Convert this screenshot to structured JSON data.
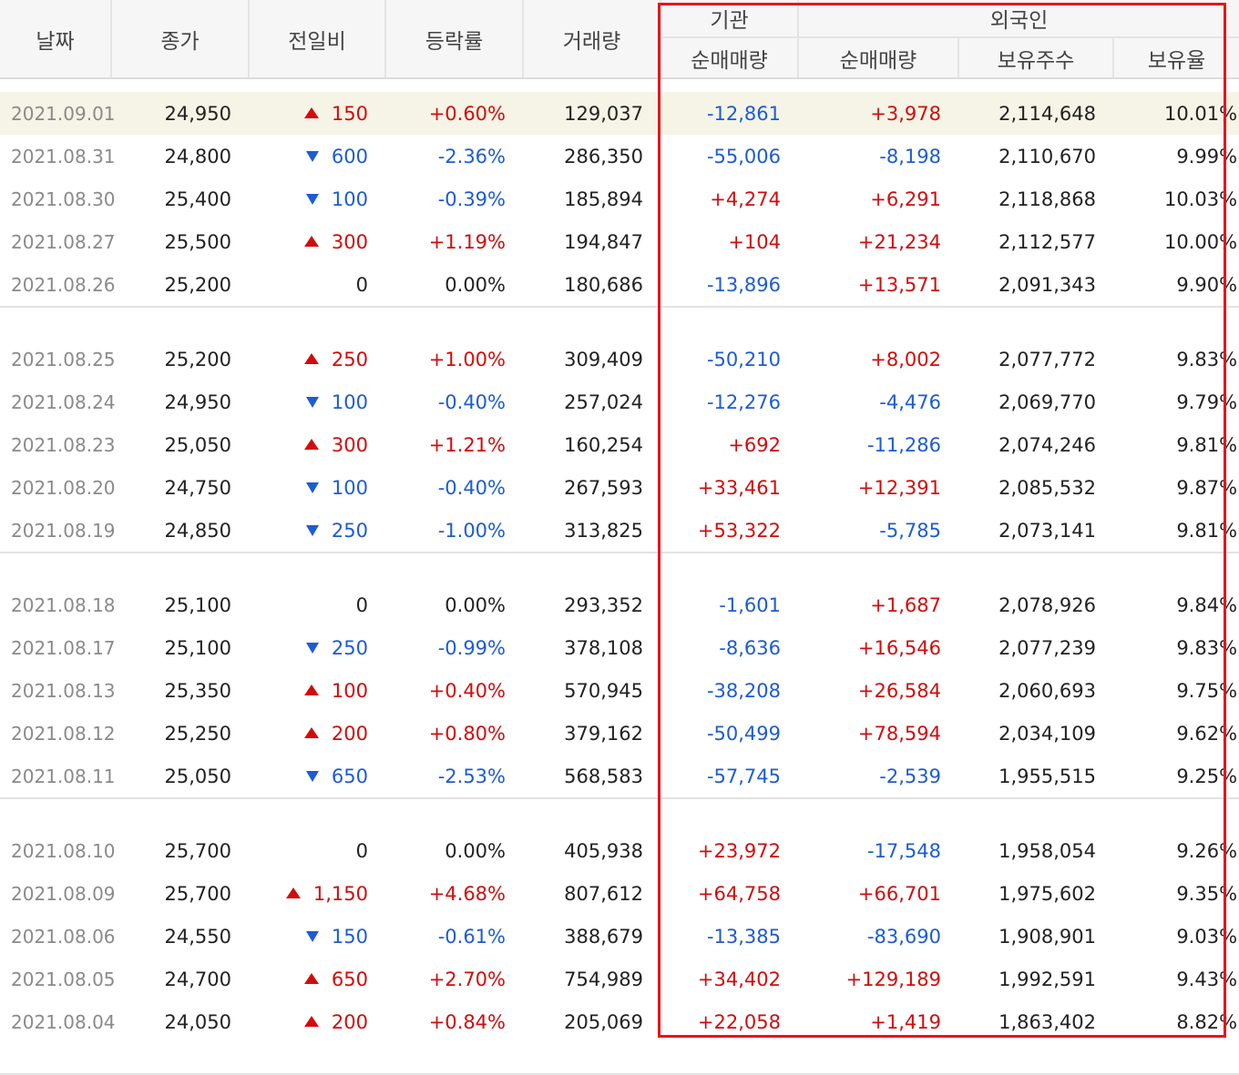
{
  "headers": {
    "date": "날짜",
    "close": "종가",
    "change": "전일비",
    "rate": "등락률",
    "volume": "거래량",
    "institution": "기관",
    "foreign": "외국인",
    "inst_net": "순매매량",
    "foreign_net": "순매매량",
    "foreign_holdings": "보유주수",
    "foreign_ratio": "보유율"
  },
  "colors": {
    "up": "#d20b0b",
    "down": "#1c5bd6",
    "highlight_box": "#e8141c",
    "selected_row": "#f5f4e6"
  },
  "icons": {
    "up": "triangle-up-icon",
    "down": "triangle-down-icon"
  },
  "groups": [
    [
      {
        "date": "2021.09.01",
        "close": "24,950",
        "dir": "up",
        "change": "150",
        "rate": "+0.60%",
        "volume": "129,037",
        "inst": "-12,861",
        "foreign": "+3,978",
        "holdings": "2,114,648",
        "ratio": "10.01%"
      },
      {
        "date": "2021.08.31",
        "close": "24,800",
        "dir": "down",
        "change": "600",
        "rate": "-2.36%",
        "volume": "286,350",
        "inst": "-55,006",
        "foreign": "-8,198",
        "holdings": "2,110,670",
        "ratio": "9.99%"
      },
      {
        "date": "2021.08.30",
        "close": "25,400",
        "dir": "down",
        "change": "100",
        "rate": "-0.39%",
        "volume": "185,894",
        "inst": "+4,274",
        "foreign": "+6,291",
        "holdings": "2,118,868",
        "ratio": "10.03%"
      },
      {
        "date": "2021.08.27",
        "close": "25,500",
        "dir": "up",
        "change": "300",
        "rate": "+1.19%",
        "volume": "194,847",
        "inst": "+104",
        "foreign": "+21,234",
        "holdings": "2,112,577",
        "ratio": "10.00%"
      },
      {
        "date": "2021.08.26",
        "close": "25,200",
        "dir": "flat",
        "change": "0",
        "rate": "0.00%",
        "volume": "180,686",
        "inst": "-13,896",
        "foreign": "+13,571",
        "holdings": "2,091,343",
        "ratio": "9.90%"
      }
    ],
    [
      {
        "date": "2021.08.25",
        "close": "25,200",
        "dir": "up",
        "change": "250",
        "rate": "+1.00%",
        "volume": "309,409",
        "inst": "-50,210",
        "foreign": "+8,002",
        "holdings": "2,077,772",
        "ratio": "9.83%"
      },
      {
        "date": "2021.08.24",
        "close": "24,950",
        "dir": "down",
        "change": "100",
        "rate": "-0.40%",
        "volume": "257,024",
        "inst": "-12,276",
        "foreign": "-4,476",
        "holdings": "2,069,770",
        "ratio": "9.79%"
      },
      {
        "date": "2021.08.23",
        "close": "25,050",
        "dir": "up",
        "change": "300",
        "rate": "+1.21%",
        "volume": "160,254",
        "inst": "+692",
        "foreign": "-11,286",
        "holdings": "2,074,246",
        "ratio": "9.81%"
      },
      {
        "date": "2021.08.20",
        "close": "24,750",
        "dir": "down",
        "change": "100",
        "rate": "-0.40%",
        "volume": "267,593",
        "inst": "+33,461",
        "foreign": "+12,391",
        "holdings": "2,085,532",
        "ratio": "9.87%"
      },
      {
        "date": "2021.08.19",
        "close": "24,850",
        "dir": "down",
        "change": "250",
        "rate": "-1.00%",
        "volume": "313,825",
        "inst": "+53,322",
        "foreign": "-5,785",
        "holdings": "2,073,141",
        "ratio": "9.81%"
      }
    ],
    [
      {
        "date": "2021.08.18",
        "close": "25,100",
        "dir": "flat",
        "change": "0",
        "rate": "0.00%",
        "volume": "293,352",
        "inst": "-1,601",
        "foreign": "+1,687",
        "holdings": "2,078,926",
        "ratio": "9.84%"
      },
      {
        "date": "2021.08.17",
        "close": "25,100",
        "dir": "down",
        "change": "250",
        "rate": "-0.99%",
        "volume": "378,108",
        "inst": "-8,636",
        "foreign": "+16,546",
        "holdings": "2,077,239",
        "ratio": "9.83%"
      },
      {
        "date": "2021.08.13",
        "close": "25,350",
        "dir": "up",
        "change": "100",
        "rate": "+0.40%",
        "volume": "570,945",
        "inst": "-38,208",
        "foreign": "+26,584",
        "holdings": "2,060,693",
        "ratio": "9.75%"
      },
      {
        "date": "2021.08.12",
        "close": "25,250",
        "dir": "up",
        "change": "200",
        "rate": "+0.80%",
        "volume": "379,162",
        "inst": "-50,499",
        "foreign": "+78,594",
        "holdings": "2,034,109",
        "ratio": "9.62%"
      },
      {
        "date": "2021.08.11",
        "close": "25,050",
        "dir": "down",
        "change": "650",
        "rate": "-2.53%",
        "volume": "568,583",
        "inst": "-57,745",
        "foreign": "-2,539",
        "holdings": "1,955,515",
        "ratio": "9.25%"
      }
    ],
    [
      {
        "date": "2021.08.10",
        "close": "25,700",
        "dir": "flat",
        "change": "0",
        "rate": "0.00%",
        "volume": "405,938",
        "inst": "+23,972",
        "foreign": "-17,548",
        "holdings": "1,958,054",
        "ratio": "9.26%"
      },
      {
        "date": "2021.08.09",
        "close": "25,700",
        "dir": "up",
        "change": "1,150",
        "rate": "+4.68%",
        "volume": "807,612",
        "inst": "+64,758",
        "foreign": "+66,701",
        "holdings": "1,975,602",
        "ratio": "9.35%"
      },
      {
        "date": "2021.08.06",
        "close": "24,550",
        "dir": "down",
        "change": "150",
        "rate": "-0.61%",
        "volume": "388,679",
        "inst": "-13,385",
        "foreign": "-83,690",
        "holdings": "1,908,901",
        "ratio": "9.03%"
      },
      {
        "date": "2021.08.05",
        "close": "24,700",
        "dir": "up",
        "change": "650",
        "rate": "+2.70%",
        "volume": "754,989",
        "inst": "+34,402",
        "foreign": "+129,189",
        "holdings": "1,992,591",
        "ratio": "9.43%"
      },
      {
        "date": "2021.08.04",
        "close": "24,050",
        "dir": "up",
        "change": "200",
        "rate": "+0.84%",
        "volume": "205,069",
        "inst": "+22,058",
        "foreign": "+1,419",
        "holdings": "1,863,402",
        "ratio": "8.82%"
      }
    ]
  ]
}
